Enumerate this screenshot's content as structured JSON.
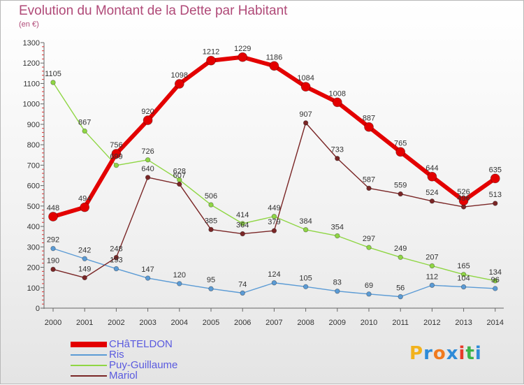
{
  "title": "Evolution du Montant de la Dette par Habitant",
  "subtitle": "(en €)",
  "logo": {
    "text": "Proxiti",
    "letter_colors": [
      "#f2b21c",
      "#2e8bd8",
      "#f07a1e",
      "#2e8bd8",
      "#e83b2a",
      "#3cb34a",
      "#2e8bd8"
    ]
  },
  "chart_data": {
    "type": "line",
    "title": "Evolution du Montant de la Dette par Habitant",
    "subtitle": "(en €)",
    "x": [
      2000,
      2001,
      2002,
      2003,
      2004,
      2005,
      2006,
      2007,
      2008,
      2009,
      2010,
      2011,
      2012,
      2013,
      2014
    ],
    "ylim": [
      0,
      1300
    ],
    "yticks": [
      0,
      100,
      200,
      300,
      400,
      500,
      600,
      700,
      800,
      900,
      1000,
      1100,
      1200,
      1300
    ],
    "grid": false,
    "legend_position": "bottom-left",
    "series": [
      {
        "name": "CHâTELDON",
        "color": "#e30000",
        "values": [
          448,
          494,
          756,
          920,
          1098,
          1212,
          1229,
          1186,
          1084,
          1008,
          887,
          765,
          644,
          526,
          635
        ]
      },
      {
        "name": "Ris",
        "color": "#5b9bd5",
        "values": [
          292,
          242,
          193,
          147,
          120,
          95,
          74,
          124,
          105,
          83,
          69,
          56,
          112,
          104,
          96
        ]
      },
      {
        "name": "Puy-Guillaume",
        "color": "#8fd644",
        "values": [
          1105,
          867,
          699,
          726,
          628,
          506,
          414,
          449,
          384,
          354,
          297,
          249,
          207,
          165,
          134
        ]
      },
      {
        "name": "Mariol",
        "color": "#7a2626",
        "values": [
          190,
          149,
          248,
          640,
          607,
          385,
          364,
          379,
          907,
          733,
          587,
          559,
          524,
          496,
          513
        ]
      }
    ]
  }
}
